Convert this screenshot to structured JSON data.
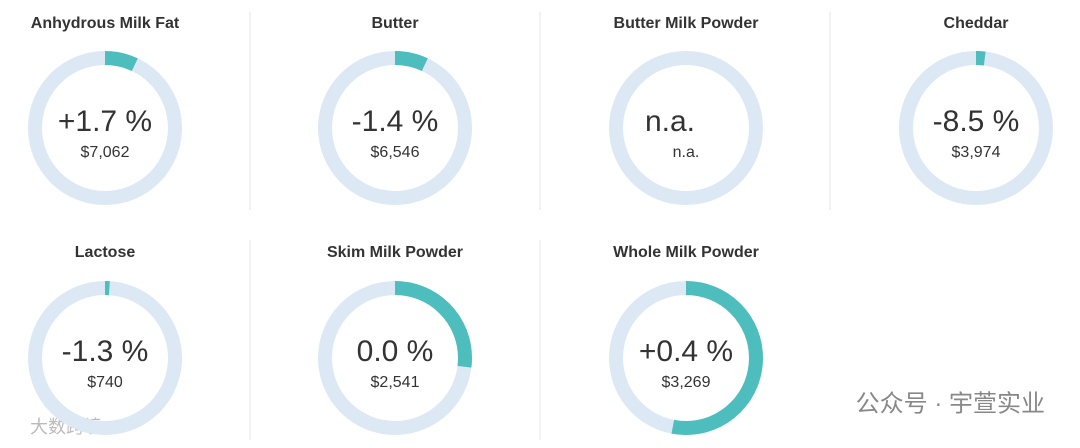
{
  "chart_data": [
    {
      "type": "donut",
      "title": "Anhydrous Milk Fat",
      "value": 7,
      "change_label": "+1.7 %",
      "price_label": "$7,062",
      "color": "#4dbdbd",
      "track_color": "#dde8f5"
    },
    {
      "type": "donut",
      "title": "Butter",
      "value": 7,
      "change_label": "-1.4 %",
      "price_label": "$6,546",
      "color": "#4dbdbd",
      "track_color": "#dde8f5"
    },
    {
      "type": "donut",
      "title": "Butter Milk Powder",
      "value": null,
      "change_label": "n.a.",
      "price_label": "n.a.",
      "color": "#4dbdbd",
      "track_color": "#dde8f5"
    },
    {
      "type": "donut",
      "title": "Cheddar",
      "value": 2,
      "change_label": "-8.5 %",
      "price_label": "$3,974",
      "color": "#4dbdbd",
      "track_color": "#dde8f5"
    },
    {
      "type": "donut",
      "title": "Lactose",
      "value": 1,
      "change_label": "-1.3 %",
      "price_label": "$740",
      "color": "#4dbdbd",
      "track_color": "#dde8f5"
    },
    {
      "type": "donut",
      "title": "Skim Milk Powder",
      "value": 27,
      "change_label": "0.0 %",
      "price_label": "$2,541",
      "color": "#4dbdbd",
      "track_color": "#dde8f5"
    },
    {
      "type": "donut",
      "title": "Whole Milk Powder",
      "value": 53,
      "change_label": "+0.4 %",
      "price_label": "$3,269",
      "color": "#4dbdbd",
      "track_color": "#dde8f5"
    }
  ],
  "watermarks": {
    "left": "大数跨境",
    "right": "公众号 · 宇萱实业"
  }
}
